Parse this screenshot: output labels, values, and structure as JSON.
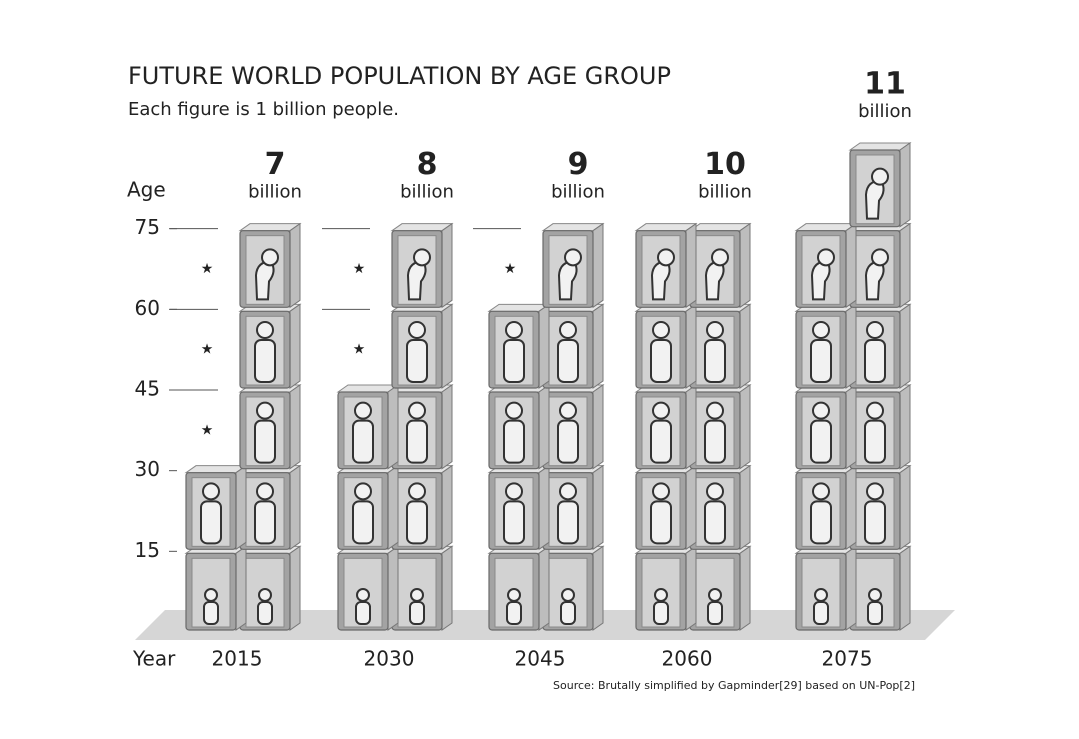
{
  "chart_data": {
    "type": "pictogram",
    "title": "FUTURE WORLD POPULATION BY AGE GROUP",
    "subtitle": "Each figure is 1 billion people.",
    "y_label": "Age",
    "x_label": "Year",
    "source": "Source: Brutally simplified by Gapminder[29] based on UN-Pop[2]",
    "categories": [
      "2015",
      "2030",
      "2045",
      "2060",
      "2075"
    ],
    "totals": [
      7,
      8,
      9,
      10,
      11
    ],
    "total_unit": "billion",
    "series": [
      {
        "name": "0-15",
        "values": [
          2,
          2,
          2,
          2,
          2
        ]
      },
      {
        "name": "15-30",
        "values": [
          2,
          2,
          2,
          2,
          2
        ]
      },
      {
        "name": "30-45",
        "values": [
          1,
          2,
          2,
          2,
          2
        ]
      },
      {
        "name": "45-60",
        "values": [
          1,
          1,
          2,
          2,
          2
        ]
      },
      {
        "name": "60-75",
        "values": [
          1,
          1,
          1,
          2,
          2
        ]
      },
      {
        "name": "75+",
        "values": [
          0,
          0,
          0,
          0,
          1
        ]
      }
    ],
    "ylim": [
      0,
      90
    ],
    "yticks": [
      15,
      30,
      45,
      60,
      75
    ]
  }
}
